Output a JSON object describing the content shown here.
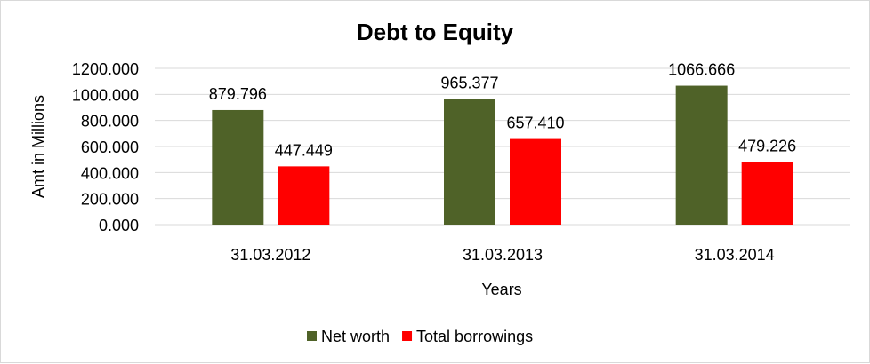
{
  "chart_data": {
    "type": "bar",
    "title": "Debt to Equity",
    "xlabel": "Years",
    "ylabel": "Amt in Millions",
    "categories": [
      "31.03.2012",
      "31.03.2013",
      "31.03.2014"
    ],
    "series": [
      {
        "name": "Net worth",
        "color": "#4f6228",
        "values": [
          879.796,
          965.377,
          1066.666
        ],
        "labels": [
          "879.796",
          "965.377",
          "1066.666"
        ]
      },
      {
        "name": "Total borrowings",
        "color": "#ff0000",
        "values": [
          447.449,
          657.41,
          479.226
        ],
        "labels": [
          "447.449",
          "657.410",
          "479.226"
        ]
      }
    ],
    "ylim": [
      0,
      1200
    ],
    "yticks": [
      "0.000",
      "200.000",
      "400.000",
      "600.000",
      "800.000",
      "1000.000",
      "1200.000"
    ],
    "grid": true,
    "legend": "bottom"
  }
}
